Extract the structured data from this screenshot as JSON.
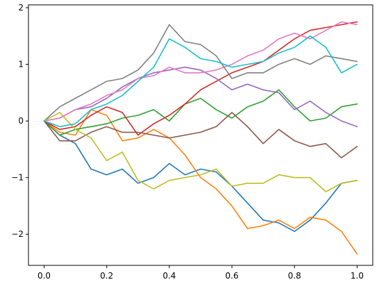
{
  "chart_data": {
    "type": "line",
    "title": "",
    "xlabel": "",
    "ylabel": "",
    "xlim": [
      -0.05,
      1.05
    ],
    "ylim": [
      -2.55,
      2.05
    ],
    "x_ticks": [
      {
        "value": 0.0,
        "label": "0.0"
      },
      {
        "value": 0.2,
        "label": "0.2"
      },
      {
        "value": 0.4,
        "label": "0.4"
      },
      {
        "value": 0.6,
        "label": "0.6"
      },
      {
        "value": 0.8,
        "label": "0.8"
      },
      {
        "value": 1.0,
        "label": "1.0"
      }
    ],
    "y_ticks": [
      {
        "value": -2,
        "label": "−2"
      },
      {
        "value": -1,
        "label": "−1"
      },
      {
        "value": 0,
        "label": "0"
      },
      {
        "value": 1,
        "label": "1"
      },
      {
        "value": 2,
        "label": "2"
      }
    ],
    "grid": false,
    "x": [
      0.0,
      0.05,
      0.1,
      0.15,
      0.2,
      0.25,
      0.3,
      0.35,
      0.4,
      0.45,
      0.5,
      0.55,
      0.6,
      0.65,
      0.7,
      0.75,
      0.8,
      0.85,
      0.9,
      0.95,
      1.0
    ],
    "series": [
      {
        "color": "#1f77b4",
        "values": [
          0,
          -0.25,
          -0.4,
          -0.85,
          -0.95,
          -0.85,
          -1.1,
          -1.0,
          -0.75,
          -0.95,
          -0.85,
          -0.9,
          -1.15,
          -1.45,
          -1.75,
          -1.8,
          -1.95,
          -1.75,
          -1.45,
          -1.1,
          -1.05
        ]
      },
      {
        "color": "#ff7f0e",
        "values": [
          0,
          -0.2,
          -0.25,
          0.2,
          0.1,
          -0.35,
          -0.3,
          -0.15,
          -0.3,
          -0.6,
          -1.0,
          -1.2,
          -1.5,
          -1.9,
          -1.85,
          -1.75,
          -1.9,
          -1.7,
          -1.75,
          -1.95,
          -2.35
        ]
      },
      {
        "color": "#2ca02c",
        "values": [
          0,
          -0.25,
          -0.15,
          -0.1,
          -0.05,
          0.05,
          0.1,
          0.2,
          0.0,
          0.3,
          0.4,
          0.2,
          0.05,
          0.25,
          0.35,
          0.55,
          0.25,
          0.0,
          0.05,
          0.25,
          0.3
        ]
      },
      {
        "color": "#d62728",
        "values": [
          0,
          -0.15,
          -0.1,
          0.1,
          0.25,
          0.15,
          -0.25,
          -0.05,
          0.1,
          0.3,
          0.55,
          0.7,
          0.85,
          0.95,
          1.05,
          1.25,
          1.45,
          1.6,
          1.65,
          1.7,
          1.75
        ]
      },
      {
        "color": "#9467bd",
        "values": [
          0,
          0.05,
          0.2,
          0.25,
          0.4,
          0.6,
          0.75,
          0.85,
          0.9,
          0.95,
          0.9,
          0.75,
          0.55,
          0.65,
          0.55,
          0.5,
          0.2,
          0.35,
          0.15,
          0.0,
          -0.1
        ]
      },
      {
        "color": "#8c564b",
        "values": [
          0,
          -0.35,
          -0.35,
          -0.2,
          -0.1,
          -0.2,
          -0.2,
          -0.25,
          -0.3,
          -0.25,
          -0.2,
          -0.1,
          0.15,
          -0.1,
          -0.4,
          -0.15,
          -0.35,
          -0.45,
          -0.4,
          -0.65,
          -0.45
        ]
      },
      {
        "color": "#e377c2",
        "values": [
          0,
          0.05,
          0.2,
          0.3,
          0.45,
          0.55,
          0.75,
          0.8,
          0.95,
          0.85,
          0.85,
          0.9,
          1.0,
          1.15,
          1.25,
          1.45,
          1.55,
          1.45,
          1.6,
          1.75,
          1.7
        ]
      },
      {
        "color": "#7f7f7f",
        "values": [
          0,
          0.25,
          0.4,
          0.55,
          0.7,
          0.75,
          0.9,
          1.2,
          1.7,
          1.4,
          1.35,
          1.15,
          0.75,
          0.85,
          0.85,
          1.0,
          1.1,
          1.0,
          1.15,
          1.1,
          1.05
        ]
      },
      {
        "color": "#bcbd22",
        "values": [
          0,
          0.15,
          -0.15,
          -0.3,
          -0.7,
          -0.55,
          -1.05,
          -1.2,
          -1.05,
          -1.0,
          -0.95,
          -0.85,
          -1.15,
          -1.1,
          -1.1,
          -0.95,
          -1.0,
          -1.0,
          -1.25,
          -1.1,
          -1.05
        ]
      },
      {
        "color": "#17becf",
        "values": [
          0,
          -0.1,
          -0.05,
          0.2,
          0.3,
          0.45,
          0.7,
          0.95,
          1.45,
          1.3,
          1.1,
          1.05,
          0.95,
          1.0,
          1.05,
          1.2,
          1.3,
          1.5,
          1.3,
          0.85,
          1.0
        ]
      }
    ]
  }
}
